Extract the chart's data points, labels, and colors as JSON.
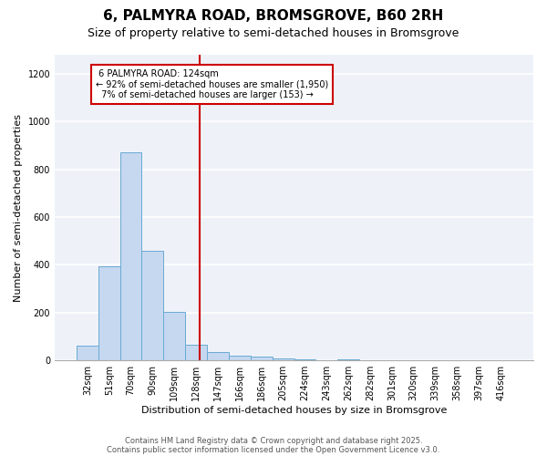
{
  "title": "6, PALMYRA ROAD, BROMSGROVE, B60 2RH",
  "subtitle": "Size of property relative to semi-detached houses in Bromsgrove",
  "xlabel": "Distribution of semi-detached houses by size in Bromsgrove",
  "ylabel": "Number of semi-detached properties",
  "categories": [
    "32sqm",
    "51sqm",
    "70sqm",
    "90sqm",
    "109sqm",
    "128sqm",
    "147sqm",
    "166sqm",
    "186sqm",
    "205sqm",
    "224sqm",
    "243sqm",
    "262sqm",
    "282sqm",
    "301sqm",
    "320sqm",
    "339sqm",
    "358sqm",
    "397sqm",
    "416sqm"
  ],
  "values": [
    60,
    395,
    870,
    460,
    205,
    65,
    35,
    20,
    15,
    10,
    5,
    0,
    5,
    0,
    0,
    0,
    0,
    0,
    0,
    0
  ],
  "bar_color": "#c5d8f0",
  "bar_edge_color": "#6aaad4",
  "ylim": [
    0,
    1280
  ],
  "yticks": [
    0,
    200,
    400,
    600,
    800,
    1000,
    1200
  ],
  "property_label": "6 PALMYRA ROAD: 124sqm",
  "pct_smaller": 92,
  "n_smaller": 1950,
  "pct_larger": 7,
  "n_larger": 153,
  "vline_x_index": 5.18,
  "annotation_box_color": "#ffffff",
  "annotation_border_color": "#cc0000",
  "vline_color": "#cc0000",
  "footer1": "Contains HM Land Registry data © Crown copyright and database right 2025.",
  "footer2": "Contains public sector information licensed under the Open Government Licence v3.0.",
  "background_color": "#eef2f8",
  "title_fontsize": 11,
  "subtitle_fontsize": 9,
  "axis_label_fontsize": 8,
  "tick_fontsize": 7,
  "annotation_fontsize": 7
}
